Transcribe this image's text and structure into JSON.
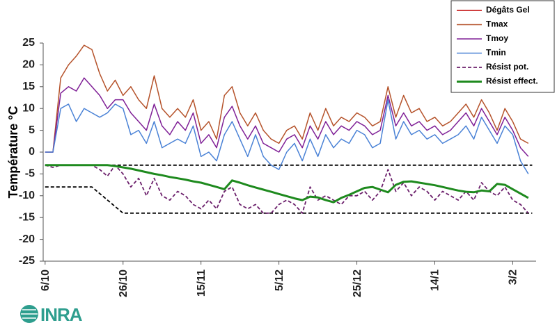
{
  "chart_data": {
    "type": "line",
    "y_label": "Température °C",
    "logo": "INRA",
    "xlim": [
      -0.5,
      126
    ],
    "ylim": [
      -25,
      25
    ],
    "yticks": [
      -25,
      -20,
      -15,
      -10,
      -5,
      0,
      5,
      10,
      15,
      20,
      25
    ],
    "xticks": [
      {
        "value": 0,
        "label": "6/10"
      },
      {
        "value": 20,
        "label": "26/10"
      },
      {
        "value": 40,
        "label": "15/11"
      },
      {
        "value": 60,
        "label": "5/12"
      },
      {
        "value": 80,
        "label": "25/12"
      },
      {
        "value": 100,
        "label": "14/1"
      },
      {
        "value": 120,
        "label": "3/2"
      }
    ],
    "legend": "top-right",
    "x": [
      0,
      2,
      4,
      6,
      8,
      10,
      12,
      14,
      16,
      18,
      20,
      22,
      24,
      26,
      28,
      30,
      32,
      34,
      36,
      38,
      40,
      42,
      44,
      46,
      48,
      50,
      52,
      54,
      56,
      58,
      60,
      62,
      64,
      66,
      68,
      70,
      72,
      74,
      76,
      78,
      80,
      82,
      84,
      86,
      88,
      90,
      92,
      94,
      96,
      98,
      100,
      102,
      104,
      106,
      108,
      110,
      112,
      114,
      116,
      118,
      120,
      122,
      124
    ],
    "series": [
      {
        "name": "Dégâts Gel",
        "color": "#c00000",
        "width": 1.5,
        "dash": false,
        "values": [
          null,
          null,
          null,
          null,
          null,
          null,
          null,
          null,
          null,
          null,
          null,
          null,
          null,
          null,
          null,
          null,
          null,
          null,
          null,
          null,
          null,
          null,
          null,
          null,
          null,
          null,
          null,
          null,
          null,
          null,
          null,
          null,
          null,
          null,
          null,
          null,
          null,
          null,
          null,
          null,
          null,
          null,
          null,
          null,
          null,
          null,
          null,
          null,
          null,
          null,
          null,
          null,
          null,
          null,
          null,
          null,
          null,
          null,
          null,
          null,
          null,
          null,
          null
        ]
      },
      {
        "name": "Tmax",
        "color": "#b5522a",
        "width": 1.5,
        "dash": false,
        "values": [
          0,
          0,
          17,
          20,
          22,
          24.5,
          23.5,
          18,
          14,
          16.5,
          13,
          15,
          12,
          10,
          17.5,
          10,
          8,
          10,
          8,
          12,
          5,
          7,
          3,
          13,
          15,
          9,
          6,
          9,
          5,
          3,
          2,
          5,
          6,
          3,
          9,
          5,
          10,
          6,
          8,
          7,
          9,
          8,
          6,
          7,
          15,
          8,
          13,
          9,
          10,
          7,
          8,
          6,
          7,
          9,
          11,
          8,
          12,
          9,
          5,
          10,
          7,
          3,
          2
        ]
      },
      {
        "name": "Tmoy",
        "color": "#7f1f96",
        "width": 1.5,
        "dash": false,
        "values": [
          0,
          0,
          13.5,
          15,
          14,
          17,
          15,
          13,
          10,
          12,
          12,
          9,
          7,
          5,
          11,
          6,
          4,
          7,
          5,
          9,
          2,
          4,
          1,
          8,
          10.5,
          6,
          3,
          6,
          2,
          1,
          0,
          3,
          4,
          1,
          6,
          3,
          7,
          4,
          6,
          5,
          7,
          6,
          4,
          5,
          13,
          6,
          9,
          6,
          7,
          5,
          6,
          4,
          5,
          7,
          9,
          6,
          10,
          7,
          4,
          8,
          5,
          1,
          -1
        ]
      },
      {
        "name": "Tmin",
        "color": "#4a82d6",
        "width": 1.5,
        "dash": false,
        "values": [
          0,
          0,
          10,
          11,
          7,
          10,
          9,
          8,
          9,
          11,
          10,
          4,
          5,
          2,
          7,
          1,
          2,
          3,
          2,
          6,
          -1,
          0,
          -2,
          4,
          7,
          3,
          -1,
          4,
          -1,
          -3,
          -4,
          0,
          2,
          -2,
          3,
          -1,
          4,
          1,
          3,
          2,
          5,
          4,
          1,
          2,
          12,
          3,
          7,
          4,
          5,
          3,
          4,
          2,
          3,
          4,
          6,
          3,
          8,
          5,
          2,
          6,
          4,
          -2,
          -5
        ]
      },
      {
        "name": "Résist pot.",
        "color": "#6b1f6b",
        "width": 1.8,
        "dash": true,
        "values": [
          -3,
          -3.5,
          -3,
          -3,
          -3,
          -3,
          -3,
          -4,
          -5.5,
          -3,
          -5,
          -8,
          -6,
          -10,
          -6,
          -10,
          -11,
          -9,
          -10,
          -12,
          -13,
          -11,
          -13,
          -9,
          -8,
          -12,
          -13,
          -12,
          -14,
          -14,
          -12,
          -11,
          -12,
          -14,
          -8,
          -11,
          -10,
          -11,
          -12,
          -10,
          -10,
          -9,
          -11,
          -9,
          -4,
          -9,
          -7,
          -10,
          -8,
          -9,
          -11,
          -9,
          -10,
          -11,
          -9,
          -11,
          -7,
          -9,
          -10,
          -8,
          -11,
          -12,
          -14
        ]
      },
      {
        "name": "Résist effect.",
        "color": "#1e8a1e",
        "width": 3,
        "dash": false,
        "values": [
          -3,
          -3,
          -3,
          -3,
          -3,
          -3,
          -3,
          -3,
          -3,
          -3.2,
          -3.5,
          -3.8,
          -4.2,
          -4.6,
          -5,
          -5.3,
          -5.7,
          -6,
          -6.3,
          -6.7,
          -7,
          -7.5,
          -8,
          -8.5,
          -6.5,
          -7,
          -7.6,
          -8.1,
          -8.6,
          -9.1,
          -9.6,
          -10.1,
          -10.6,
          -11,
          -10.2,
          -10.4,
          -11,
          -11.5,
          -10.5,
          -9.8,
          -9,
          -8.2,
          -8,
          -8.6,
          -9.2,
          -7.5,
          -6.8,
          -6.7,
          -7,
          -7.3,
          -7.6,
          -8,
          -8.4,
          -8.8,
          -9.1,
          -9.2,
          -8.8,
          -9,
          -7.3,
          -7.5,
          -8.5,
          -9.5,
          -10.5
        ]
      }
    ],
    "reference_lines": [
      {
        "color": "#000000",
        "x": [
          0,
          125
        ],
        "values": [
          -3,
          -3
        ]
      },
      {
        "color": "#000000",
        "x": [
          0,
          12,
          20,
          125
        ],
        "values": [
          -8,
          -8,
          -14,
          -14
        ]
      }
    ]
  }
}
